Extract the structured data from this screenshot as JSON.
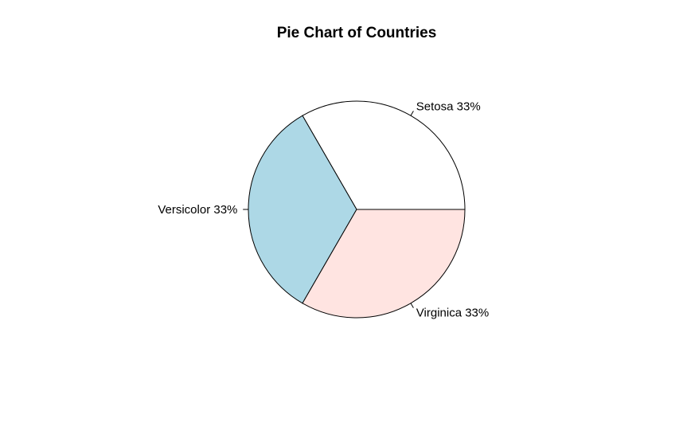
{
  "chart_data": {
    "type": "pie",
    "title": "Pie Chart of Countries",
    "slices": [
      {
        "name": "Setosa",
        "value": 33.33,
        "label": "Setosa 33%",
        "color": "#ffffff"
      },
      {
        "name": "Versicolor",
        "value": 33.33,
        "label": "Versicolor 33%",
        "color": "#add8e6"
      },
      {
        "name": "Virginica",
        "value": 33.33,
        "label": "Virginica 33%",
        "color": "#ffe4e1"
      }
    ],
    "start_angle_deg": 0,
    "direction": "counterclockwise"
  }
}
